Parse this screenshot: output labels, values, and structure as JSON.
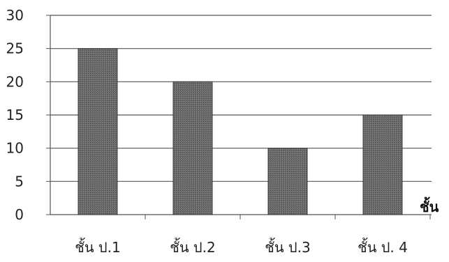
{
  "chart_data": {
    "type": "bar",
    "categories": [
      "ชั้น ป.1",
      "ชั้น ป.2",
      "ชั้น ป.3",
      "ชั้น ป. 4"
    ],
    "values": [
      25,
      20,
      10,
      15
    ],
    "xlabel": "ชั้น",
    "ylabel": "",
    "ylim": [
      0,
      30
    ],
    "yticks": [
      0,
      5,
      10,
      15,
      20,
      25,
      30
    ],
    "grid": true,
    "legend": "none",
    "colors": {
      "bar": "#777777",
      "grid": "#555555",
      "background": "#ffffff"
    }
  }
}
